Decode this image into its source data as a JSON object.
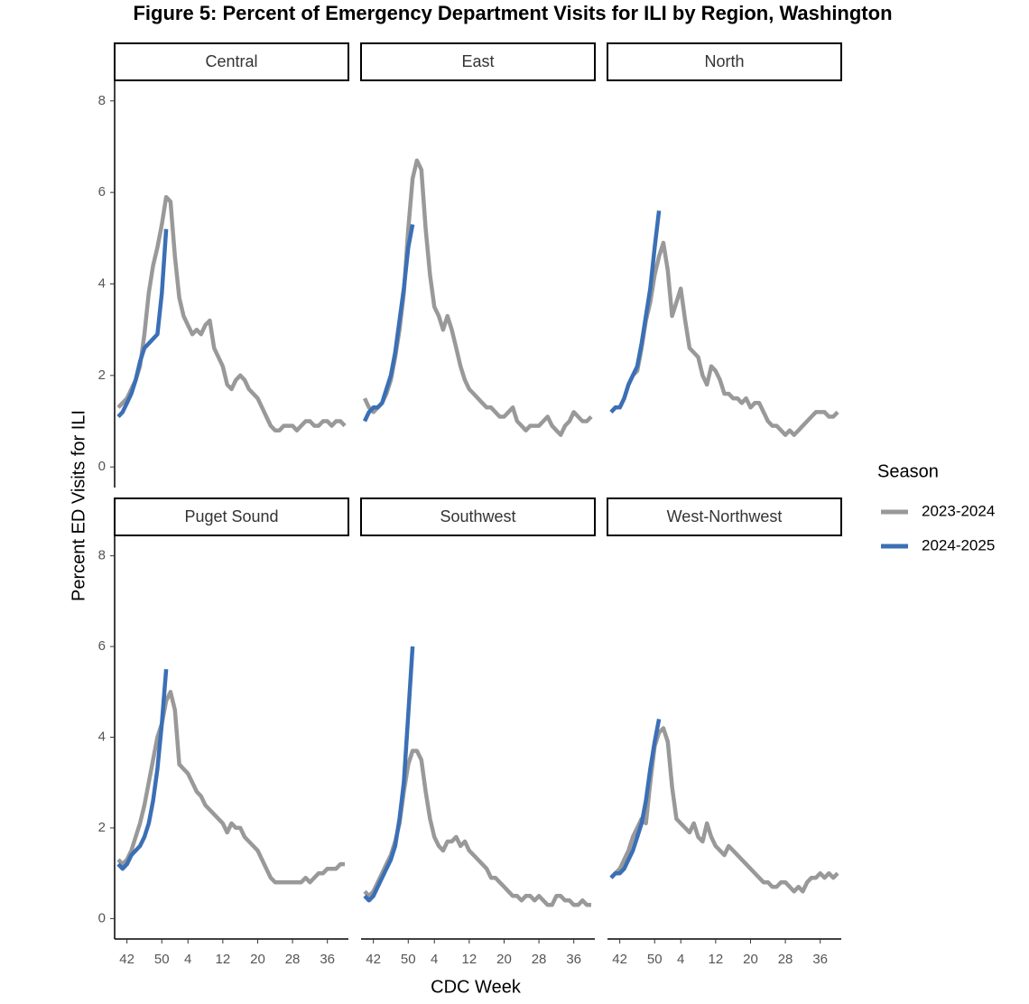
{
  "chart_data": {
    "type": "line",
    "title": "Figure 5: Percent of Emergency Department Visits for ILI by Region, Washington",
    "x_label": "CDC Week",
    "y_label": "Percent ED Visits for ILI",
    "legend_title": "Season",
    "categories": [
      40,
      41,
      42,
      43,
      44,
      45,
      46,
      47,
      48,
      49,
      50,
      51,
      52,
      1,
      2,
      3,
      4,
      5,
      6,
      7,
      8,
      9,
      10,
      11,
      12,
      13,
      14,
      15,
      16,
      17,
      18,
      19,
      20,
      21,
      22,
      23,
      24,
      25,
      26,
      27,
      28,
      29,
      30,
      31,
      32,
      33,
      34,
      35,
      36,
      37,
      38,
      39,
      40
    ],
    "xticks": [
      42,
      50,
      4,
      12,
      20,
      28,
      36
    ],
    "ylim": [
      -0.45,
      8.43
    ],
    "yticks": [
      0,
      2,
      4,
      6,
      8
    ],
    "panels": [
      {
        "name": "Central",
        "series": [
          {
            "name": "2023-2024",
            "color": "#999999",
            "values": [
              1.3,
              1.4,
              1.5,
              1.7,
              1.9,
              2.2,
              2.9,
              3.8,
              4.4,
              4.8,
              5.3,
              5.9,
              5.8,
              4.6,
              3.7,
              3.3,
              3.1,
              2.9,
              3.0,
              2.9,
              3.1,
              3.2,
              2.6,
              2.4,
              2.2,
              1.8,
              1.7,
              1.9,
              2.0,
              1.9,
              1.7,
              1.6,
              1.5,
              1.3,
              1.1,
              0.9,
              0.8,
              0.8,
              0.9,
              0.9,
              0.9,
              0.8,
              0.9,
              1.0,
              1.0,
              0.9,
              0.9,
              1.0,
              1.0,
              0.9,
              1.0,
              1.0,
              0.9
            ]
          },
          {
            "name": "2024-2025",
            "color": "#3b6fb6",
            "values": [
              1.1,
              1.2,
              1.4,
              1.6,
              1.9,
              2.3,
              2.6,
              2.7,
              2.8,
              2.9,
              3.8,
              5.2,
              null,
              null,
              null,
              null,
              null,
              null,
              null,
              null,
              null,
              null,
              null,
              null,
              null,
              null,
              null,
              null,
              null,
              null,
              null,
              null,
              null,
              null,
              null,
              null,
              null,
              null,
              null,
              null,
              null,
              null,
              null,
              null,
              null,
              null,
              null,
              null,
              null,
              null,
              null,
              null,
              null
            ]
          }
        ]
      },
      {
        "name": "East",
        "series": [
          {
            "name": "2023-2024",
            "color": "#999999",
            "values": [
              1.5,
              1.3,
              1.2,
              1.3,
              1.4,
              1.6,
              1.9,
              2.4,
              3.0,
              3.8,
              5.2,
              6.3,
              6.7,
              6.5,
              5.2,
              4.2,
              3.5,
              3.3,
              3.0,
              3.3,
              3.0,
              2.6,
              2.2,
              1.9,
              1.7,
              1.6,
              1.5,
              1.4,
              1.3,
              1.3,
              1.2,
              1.1,
              1.1,
              1.2,
              1.3,
              1.0,
              0.9,
              0.8,
              0.9,
              0.9,
              0.9,
              1.0,
              1.1,
              0.9,
              0.8,
              0.7,
              0.9,
              1.0,
              1.2,
              1.1,
              1.0,
              1.0,
              1.1
            ]
          },
          {
            "name": "2024-2025",
            "color": "#3b6fb6",
            "values": [
              1.0,
              1.2,
              1.3,
              1.3,
              1.4,
              1.7,
              2.0,
              2.5,
              3.2,
              3.9,
              4.8,
              5.3,
              null,
              null,
              null,
              null,
              null,
              null,
              null,
              null,
              null,
              null,
              null,
              null,
              null,
              null,
              null,
              null,
              null,
              null,
              null,
              null,
              null,
              null,
              null,
              null,
              null,
              null,
              null,
              null,
              null,
              null,
              null,
              null,
              null,
              null,
              null,
              null,
              null,
              null,
              null,
              null,
              null
            ]
          }
        ]
      },
      {
        "name": "North",
        "series": [
          {
            "name": "2023-2024",
            "color": "#999999",
            "values": [
              1.2,
              1.3,
              1.3,
              1.5,
              1.8,
              2.0,
              2.1,
              2.6,
              3.2,
              3.6,
              4.2,
              4.6,
              4.9,
              4.3,
              3.3,
              3.6,
              3.9,
              3.2,
              2.6,
              2.5,
              2.4,
              2.0,
              1.8,
              2.2,
              2.1,
              1.9,
              1.6,
              1.6,
              1.5,
              1.5,
              1.4,
              1.5,
              1.3,
              1.4,
              1.4,
              1.2,
              1.0,
              0.9,
              0.9,
              0.8,
              0.7,
              0.8,
              0.7,
              0.8,
              0.9,
              1.0,
              1.1,
              1.2,
              1.2,
              1.2,
              1.1,
              1.1,
              1.2
            ]
          },
          {
            "name": "2024-2025",
            "color": "#3b6fb6",
            "values": [
              1.2,
              1.3,
              1.3,
              1.5,
              1.8,
              2.0,
              2.2,
              2.7,
              3.3,
              3.9,
              4.8,
              5.6,
              null,
              null,
              null,
              null,
              null,
              null,
              null,
              null,
              null,
              null,
              null,
              null,
              null,
              null,
              null,
              null,
              null,
              null,
              null,
              null,
              null,
              null,
              null,
              null,
              null,
              null,
              null,
              null,
              null,
              null,
              null,
              null,
              null,
              null,
              null,
              null,
              null,
              null,
              null,
              null,
              null
            ]
          }
        ]
      },
      {
        "name": "Puget Sound",
        "series": [
          {
            "name": "2023-2024",
            "color": "#999999",
            "values": [
              1.3,
              1.2,
              1.3,
              1.5,
              1.8,
              2.1,
              2.5,
              3.0,
              3.5,
              4.0,
              4.3,
              4.8,
              5.0,
              4.6,
              3.4,
              3.3,
              3.2,
              3.0,
              2.8,
              2.7,
              2.5,
              2.4,
              2.3,
              2.2,
              2.1,
              1.9,
              2.1,
              2.0,
              2.0,
              1.8,
              1.7,
              1.6,
              1.5,
              1.3,
              1.1,
              0.9,
              0.8,
              0.8,
              0.8,
              0.8,
              0.8,
              0.8,
              0.8,
              0.9,
              0.8,
              0.9,
              1.0,
              1.0,
              1.1,
              1.1,
              1.1,
              1.2,
              1.2
            ]
          },
          {
            "name": "2024-2025",
            "color": "#3b6fb6",
            "values": [
              1.2,
              1.1,
              1.2,
              1.4,
              1.5,
              1.6,
              1.8,
              2.1,
              2.6,
              3.3,
              4.3,
              5.5,
              null,
              null,
              null,
              null,
              null,
              null,
              null,
              null,
              null,
              null,
              null,
              null,
              null,
              null,
              null,
              null,
              null,
              null,
              null,
              null,
              null,
              null,
              null,
              null,
              null,
              null,
              null,
              null,
              null,
              null,
              null,
              null,
              null,
              null,
              null,
              null,
              null,
              null,
              null,
              null,
              null
            ]
          }
        ]
      },
      {
        "name": "Southwest",
        "series": [
          {
            "name": "2023-2024",
            "color": "#999999",
            "values": [
              0.6,
              0.5,
              0.6,
              0.8,
              1.0,
              1.2,
              1.4,
              1.7,
              2.1,
              2.8,
              3.4,
              3.7,
              3.7,
              3.5,
              2.8,
              2.2,
              1.8,
              1.6,
              1.5,
              1.7,
              1.7,
              1.8,
              1.6,
              1.7,
              1.5,
              1.4,
              1.3,
              1.2,
              1.1,
              0.9,
              0.9,
              0.8,
              0.7,
              0.6,
              0.5,
              0.5,
              0.4,
              0.5,
              0.5,
              0.4,
              0.5,
              0.4,
              0.3,
              0.3,
              0.5,
              0.5,
              0.4,
              0.4,
              0.3,
              0.3,
              0.4,
              0.3,
              0.3
            ]
          },
          {
            "name": "2024-2025",
            "color": "#3b6fb6",
            "values": [
              0.5,
              0.4,
              0.5,
              0.7,
              0.9,
              1.1,
              1.3,
              1.6,
              2.2,
              3.0,
              4.5,
              6.0,
              null,
              null,
              null,
              null,
              null,
              null,
              null,
              null,
              null,
              null,
              null,
              null,
              null,
              null,
              null,
              null,
              null,
              null,
              null,
              null,
              null,
              null,
              null,
              null,
              null,
              null,
              null,
              null,
              null,
              null,
              null,
              null,
              null,
              null,
              null,
              null,
              null,
              null,
              null,
              null,
              null
            ]
          }
        ]
      },
      {
        "name": "West-Northwest",
        "series": [
          {
            "name": "2023-2024",
            "color": "#999999",
            "values": [
              0.9,
              1.0,
              1.1,
              1.3,
              1.5,
              1.8,
              2.0,
              2.2,
              2.1,
              3.0,
              3.8,
              4.1,
              4.2,
              3.9,
              2.9,
              2.2,
              2.1,
              2.0,
              1.9,
              2.1,
              1.8,
              1.7,
              2.1,
              1.8,
              1.6,
              1.5,
              1.4,
              1.6,
              1.5,
              1.4,
              1.3,
              1.2,
              1.1,
              1.0,
              0.9,
              0.8,
              0.8,
              0.7,
              0.7,
              0.8,
              0.8,
              0.7,
              0.6,
              0.7,
              0.6,
              0.8,
              0.9,
              0.9,
              1.0,
              0.9,
              1.0,
              0.9,
              1.0
            ]
          },
          {
            "name": "2024-2025",
            "color": "#3b6fb6",
            "values": [
              0.9,
              1.0,
              1.0,
              1.1,
              1.3,
              1.5,
              1.8,
              2.1,
              2.6,
              3.3,
              3.9,
              4.4,
              null,
              null,
              null,
              null,
              null,
              null,
              null,
              null,
              null,
              null,
              null,
              null,
              null,
              null,
              null,
              null,
              null,
              null,
              null,
              null,
              null,
              null,
              null,
              null,
              null,
              null,
              null,
              null,
              null,
              null,
              null,
              null,
              null,
              null,
              null,
              null,
              null,
              null,
              null,
              null,
              null
            ]
          }
        ]
      }
    ]
  }
}
